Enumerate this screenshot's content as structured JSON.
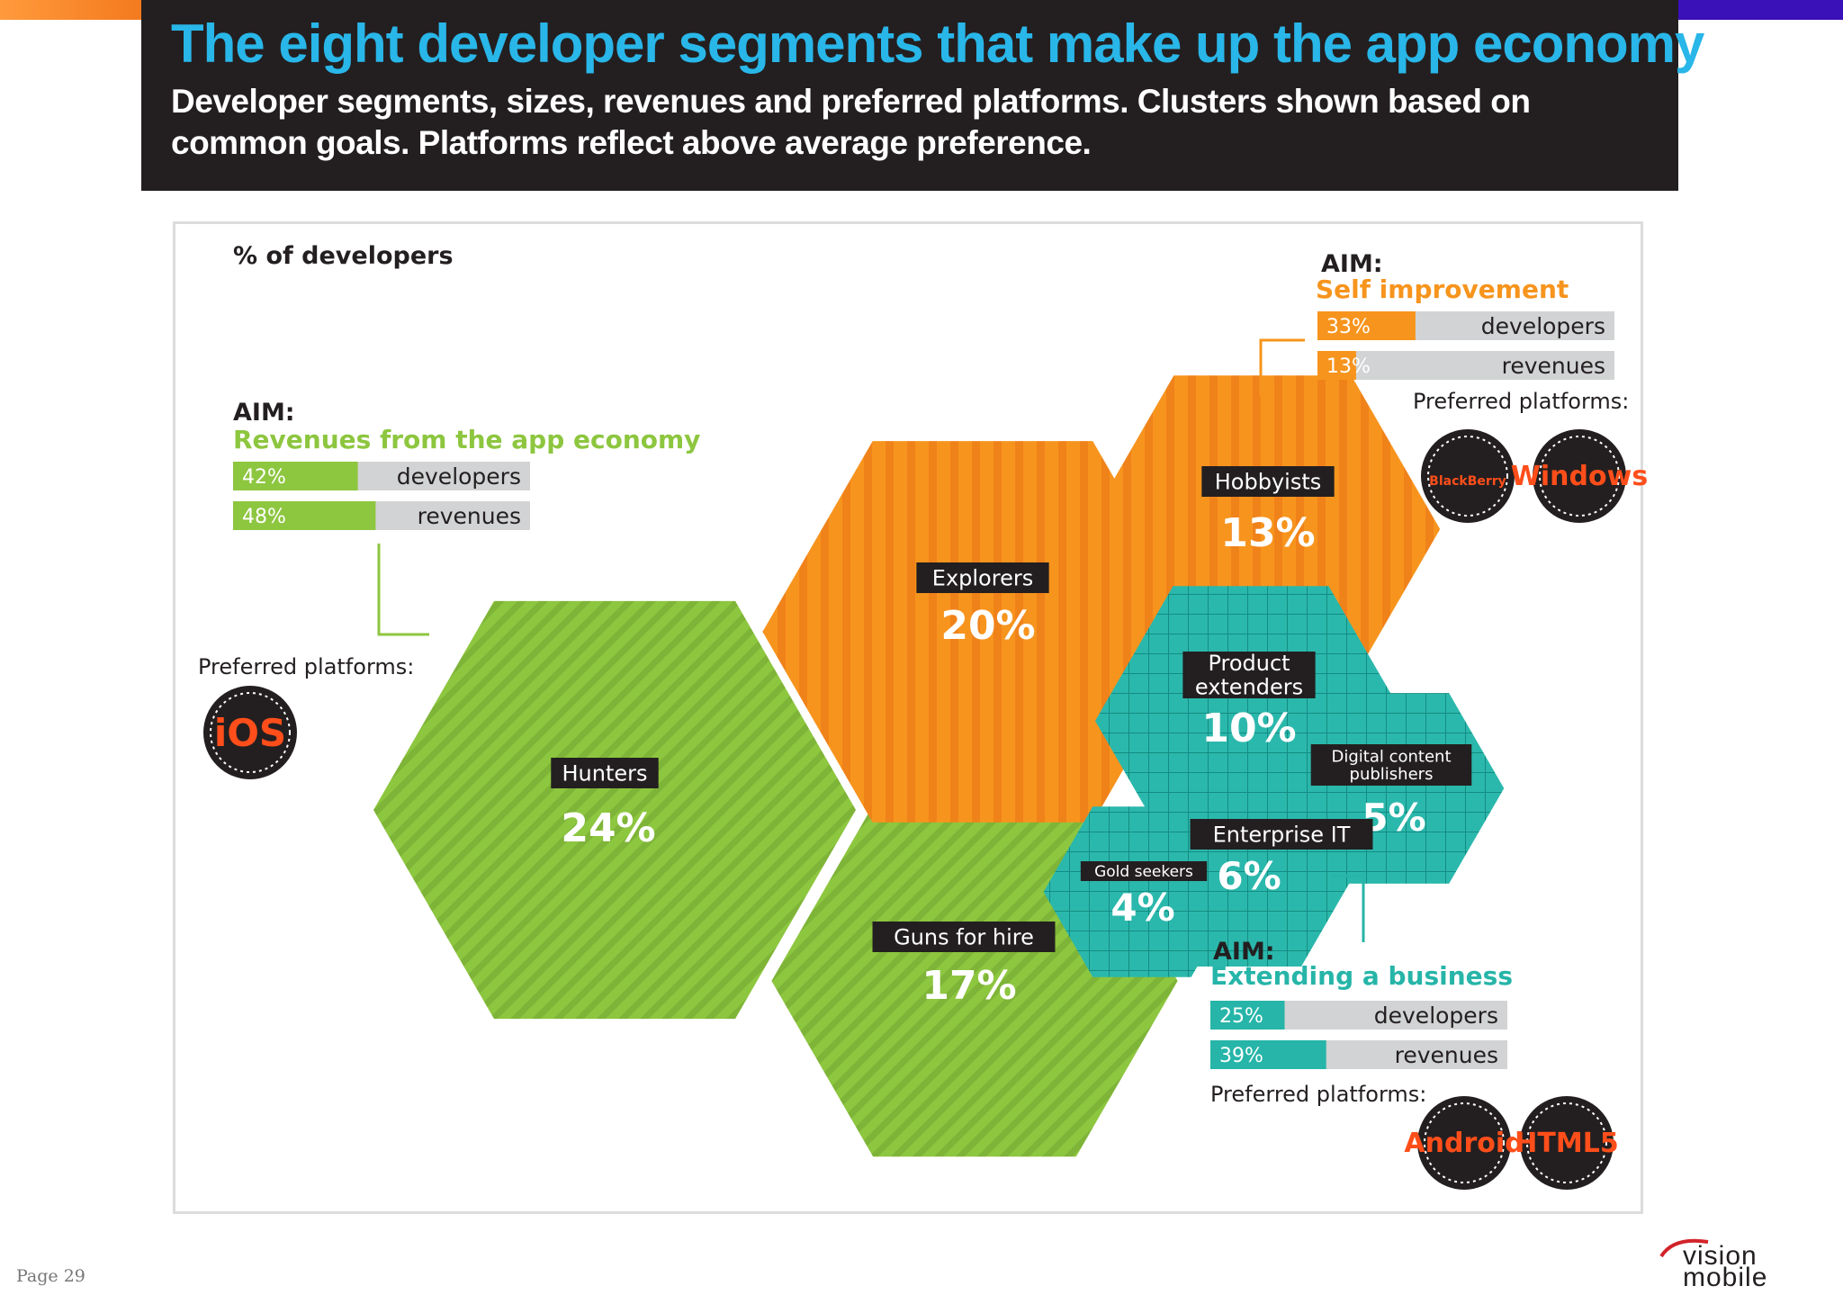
{
  "header": {
    "title": "The eight developer segments that make up the app economy",
    "subtitle": "Developer segments, sizes, revenues and preferred platforms. Clusters shown based on common goals. Platforms reflect above average preference."
  },
  "colors": {
    "green": "#8dc63f",
    "orange": "#f7941d",
    "teal": "#26b5a8",
    "dark": "#231f20",
    "bar_bg": "#d1d3d4"
  },
  "chart_data": {
    "type": "bubble-hexagon",
    "title": "% of developers",
    "unit": "%",
    "segments": [
      {
        "name": "Hunters",
        "value": 24,
        "cluster": "revenues"
      },
      {
        "name": "Guns for hire",
        "value": 17,
        "cluster": "revenues"
      },
      {
        "name": "Explorers",
        "value": 20,
        "cluster": "self"
      },
      {
        "name": "Hobbyists",
        "value": 13,
        "cluster": "self"
      },
      {
        "name": "Product extenders",
        "value": 10,
        "cluster": "business"
      },
      {
        "name": "Digital content publishers",
        "value": 5,
        "cluster": "business"
      },
      {
        "name": "Enterprise IT",
        "value": 6,
        "cluster": "business"
      },
      {
        "name": "Gold seekers",
        "value": 4,
        "cluster": "business"
      }
    ],
    "clusters": [
      {
        "id": "revenues",
        "aim_label": "AIM:",
        "aim": "Revenues from the app economy",
        "developers_pct": 42,
        "revenues_pct": 48,
        "developers_label": "developers",
        "revenues_label": "revenues",
        "platforms_label": "Preferred platforms:",
        "platforms": [
          "iOS"
        ]
      },
      {
        "id": "self",
        "aim_label": "AIM:",
        "aim": "Self improvement",
        "developers_pct": 33,
        "revenues_pct": 13,
        "developers_label": "developers",
        "revenues_label": "revenues",
        "platforms_label": "Preferred platforms:",
        "platforms": [
          "BlackBerry",
          "Windows"
        ]
      },
      {
        "id": "business",
        "aim_label": "AIM:",
        "aim": "Extending a business",
        "developers_pct": 25,
        "revenues_pct": 39,
        "developers_label": "developers",
        "revenues_label": "revenues",
        "platforms_label": "Preferred platforms:",
        "platforms": [
          "Android",
          "HTML5"
        ]
      }
    ]
  },
  "footer": {
    "page": "Page 29",
    "logo_line1": "vision",
    "logo_line2": "mobile"
  }
}
